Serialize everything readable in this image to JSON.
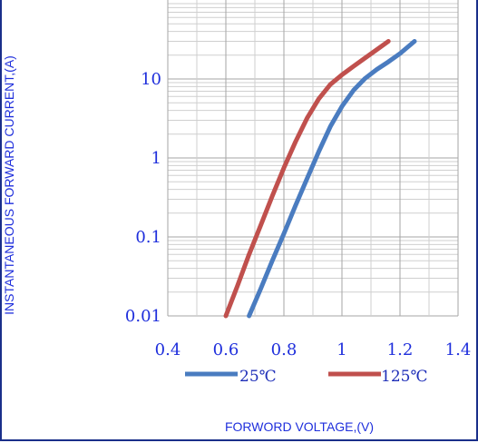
{
  "chart_data": {
    "type": "line",
    "title": "",
    "xlabel": "FORWORD VOLTAGE,(V)",
    "ylabel": "INSTANTANEOUS FORWARD CURRENT,(A)",
    "x_scale": "linear",
    "y_scale": "log",
    "xlim": [
      0.4,
      1.4
    ],
    "ylim": [
      0.01,
      100
    ],
    "x_ticks": [
      0.4,
      0.6,
      0.8,
      1.0,
      1.2,
      1.4
    ],
    "x_tick_labels": [
      "0.4",
      "0.6",
      "0.8",
      "1",
      "1.2",
      "1.4"
    ],
    "y_ticks": [
      0.01,
      0.1,
      1,
      10
    ],
    "y_tick_labels": [
      "0.01",
      "0.1",
      "1",
      "10"
    ],
    "grid": true,
    "legend_position": "bottom",
    "series": [
      {
        "name": "25℃",
        "color": "#4a7cc0",
        "x": [
          0.68,
          0.72,
          0.76,
          0.8,
          0.84,
          0.88,
          0.92,
          0.96,
          1.0,
          1.04,
          1.08,
          1.12,
          1.16,
          1.2,
          1.25
        ],
        "y": [
          0.01,
          0.022,
          0.05,
          0.11,
          0.25,
          0.55,
          1.2,
          2.5,
          4.5,
          7.2,
          10.2,
          13.2,
          16.5,
          21,
          30
        ]
      },
      {
        "name": "125℃",
        "color": "#c0504d",
        "x": [
          0.6,
          0.64,
          0.68,
          0.72,
          0.76,
          0.8,
          0.84,
          0.88,
          0.92,
          0.96,
          1.0,
          1.04,
          1.08,
          1.12,
          1.16
        ],
        "y": [
          0.01,
          0.024,
          0.06,
          0.14,
          0.33,
          0.75,
          1.6,
          3.2,
          5.6,
          8.5,
          11.3,
          14.5,
          18.5,
          23.5,
          30
        ]
      }
    ]
  }
}
